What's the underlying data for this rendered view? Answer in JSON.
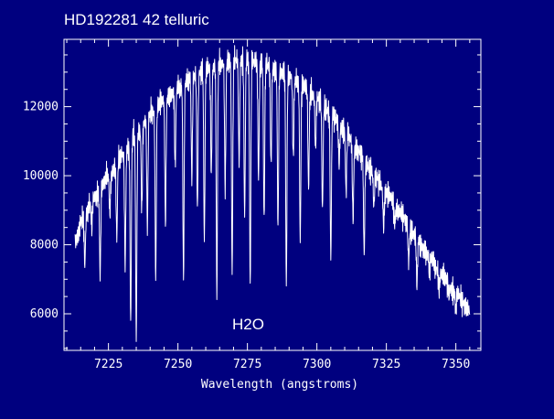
{
  "chart_data": {
    "type": "line",
    "title": "HD192281 42 telluric",
    "xlabel": "Wavelength (angstroms)",
    "ylabel": "",
    "annotation": "H2O",
    "xlim": [
      7209,
      7359
    ],
    "ylim": [
      4940,
      13950
    ],
    "xticks": [
      7225,
      7250,
      7275,
      7300,
      7325,
      7350
    ],
    "xtick_labels": [
      "7225",
      "7250",
      "7275",
      "7300",
      "7325",
      "7350"
    ],
    "yticks": [
      6000,
      8000,
      10000,
      12000
    ],
    "ytick_labels": [
      "6000",
      "8000",
      "10000",
      "12000"
    ],
    "grid": false,
    "colors": {
      "background": "#00007f",
      "foreground": "#ffffff"
    },
    "continuum": {
      "x": [
        7213,
        7216,
        7220,
        7225,
        7230,
        7235,
        7240,
        7245,
        7250,
        7255,
        7260,
        7265,
        7270,
        7275,
        7280,
        7285,
        7290,
        7295,
        7300,
        7305,
        7310,
        7315,
        7320,
        7325,
        7330,
        7335,
        7340,
        7345,
        7350,
        7355
      ],
      "y": [
        8100,
        8800,
        9400,
        10000,
        10600,
        11200,
        11800,
        12200,
        12550,
        12850,
        13100,
        13250,
        13350,
        13350,
        13250,
        13100,
        12900,
        12600,
        12250,
        11800,
        11300,
        10700,
        10100,
        9500,
        8900,
        8300,
        7700,
        7100,
        6600,
        6100
      ]
    },
    "absorption_lines": [
      {
        "x": 7216.5,
        "y": 7400
      },
      {
        "x": 7219.0,
        "y": 8500
      },
      {
        "x": 7222.0,
        "y": 7100
      },
      {
        "x": 7225.5,
        "y": 8900
      },
      {
        "x": 7228.0,
        "y": 8200
      },
      {
        "x": 7231.0,
        "y": 7400
      },
      {
        "x": 7233.0,
        "y": 5700
      },
      {
        "x": 7235.0,
        "y": 5300
      },
      {
        "x": 7237.0,
        "y": 9000
      },
      {
        "x": 7239.0,
        "y": 8500
      },
      {
        "x": 7242.0,
        "y": 7000
      },
      {
        "x": 7245.5,
        "y": 8600
      },
      {
        "x": 7249.0,
        "y": 10300
      },
      {
        "x": 7252.0,
        "y": 7000
      },
      {
        "x": 7255.0,
        "y": 9900
      },
      {
        "x": 7257.0,
        "y": 9000
      },
      {
        "x": 7259.5,
        "y": 8100
      },
      {
        "x": 7262.0,
        "y": 10000
      },
      {
        "x": 7264.0,
        "y": 6500
      },
      {
        "x": 7267.0,
        "y": 9600
      },
      {
        "x": 7269.5,
        "y": 7200
      },
      {
        "x": 7272.0,
        "y": 10400
      },
      {
        "x": 7274.0,
        "y": 8800
      },
      {
        "x": 7276.0,
        "y": 6800
      },
      {
        "x": 7279.0,
        "y": 9900
      },
      {
        "x": 7281.0,
        "y": 8700
      },
      {
        "x": 7283.5,
        "y": 10300
      },
      {
        "x": 7286.0,
        "y": 8500
      },
      {
        "x": 7289.0,
        "y": 6800
      },
      {
        "x": 7291.5,
        "y": 10500
      },
      {
        "x": 7294.0,
        "y": 8100
      },
      {
        "x": 7297.0,
        "y": 9600
      },
      {
        "x": 7299.5,
        "y": 10800
      },
      {
        "x": 7302.0,
        "y": 9000
      },
      {
        "x": 7305.0,
        "y": 7600
      },
      {
        "x": 7308.0,
        "y": 10300
      },
      {
        "x": 7310.5,
        "y": 9500
      },
      {
        "x": 7313.0,
        "y": 8700
      },
      {
        "x": 7317.0,
        "y": 7700
      },
      {
        "x": 7320.5,
        "y": 9100
      },
      {
        "x": 7324.0,
        "y": 8500
      },
      {
        "x": 7328.0,
        "y": 8600
      },
      {
        "x": 7333.0,
        "y": 7500
      },
      {
        "x": 7336.0,
        "y": 6800
      },
      {
        "x": 7340.5,
        "y": 7200
      },
      {
        "x": 7344.0,
        "y": 6700
      },
      {
        "x": 7347.5,
        "y": 6500
      },
      {
        "x": 7350.0,
        "y": 6100
      }
    ]
  }
}
